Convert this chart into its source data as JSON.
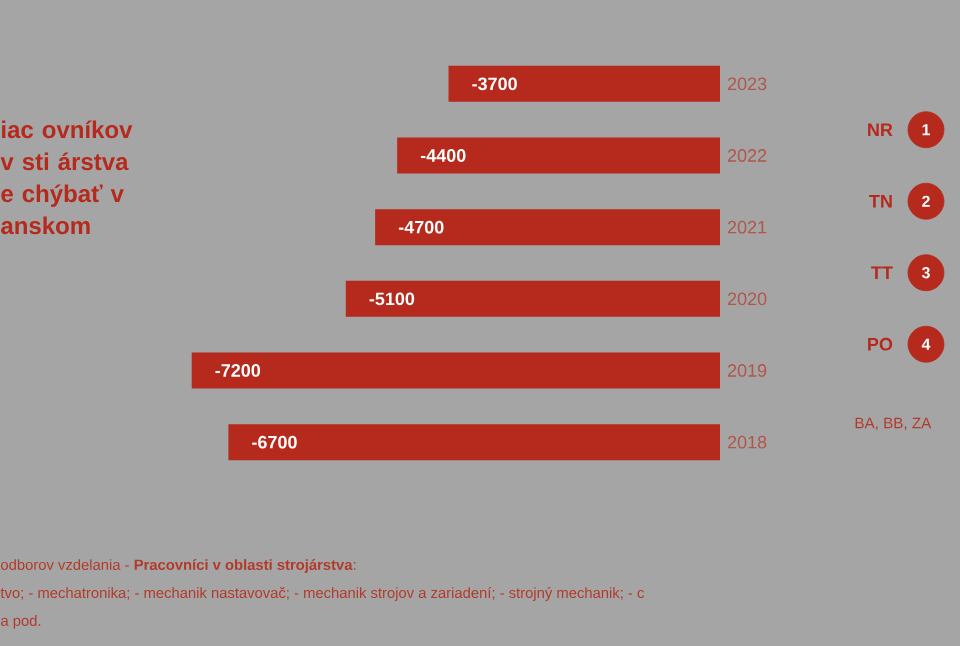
{
  "chart_data": [
    {
      "type": "bar",
      "orientation": "horizontal",
      "title": "iac ovníkov v sti árstva e chýbať v anskom",
      "categories": [
        "2023",
        "2022",
        "2021",
        "2020",
        "2019",
        "2018"
      ],
      "values": [
        -3700,
        -4400,
        -4700,
        -5100,
        -7200,
        -6700
      ],
      "color": "#b52a1c",
      "data_labels": true,
      "annotations": [
        "odborov vzdelania - **Pracovníci v oblasti strojárstva**:",
        "tvo; - mechatronika; - mechanik nastavovač; - mechanik strojov a zariadení; - strojný mechanik; - c",
        "a pod."
      ]
    },
    {
      "type": "other",
      "categories": [
        "NR",
        "TN",
        "TT",
        "PO"
      ],
      "values": [
        1,
        2,
        3,
        4
      ],
      "color": "#b52a1c",
      "data_labels": true,
      "annotations": [
        "BA, BB, ZA"
      ]
    }
  ]
}
